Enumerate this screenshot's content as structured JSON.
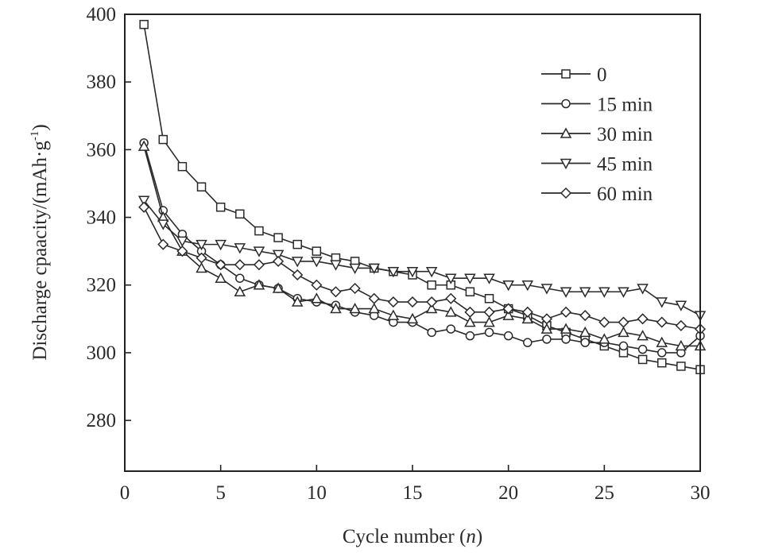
{
  "chart_data": {
    "type": "line",
    "xlabel": "Cycle number (n)",
    "xlabel_parts": [
      "Cycle number (",
      "n",
      ")"
    ],
    "ylabel": "Discharge cpaacity/(mAh·g⁻¹)",
    "ylabel_parts": [
      "Discharge cpaacity/(mAh·g",
      "-1",
      ")"
    ],
    "xlim": [
      0,
      30
    ],
    "ylim": [
      265,
      400
    ],
    "x_ticks": [
      0,
      5,
      10,
      15,
      20,
      25,
      30
    ],
    "y_ticks": [
      280,
      300,
      320,
      340,
      360,
      380,
      400
    ],
    "grid": false,
    "legend_position": "top-right",
    "x": [
      1,
      2,
      3,
      4,
      5,
      6,
      7,
      8,
      9,
      10,
      11,
      12,
      13,
      14,
      15,
      16,
      17,
      18,
      19,
      20,
      21,
      22,
      23,
      24,
      25,
      26,
      27,
      28,
      29,
      30
    ],
    "series": [
      {
        "name": "0",
        "marker": "square",
        "values": [
          397,
          363,
          355,
          349,
          343,
          341,
          336,
          334,
          332,
          330,
          328,
          327,
          325,
          324,
          323,
          320,
          320,
          318,
          316,
          313,
          311,
          308,
          306,
          304,
          302,
          300,
          298,
          297,
          296,
          295
        ]
      },
      {
        "name": "15 min",
        "marker": "circle",
        "values": [
          362,
          342,
          335,
          330,
          326,
          322,
          320,
          319,
          316,
          315,
          314,
          312,
          311,
          309,
          309,
          306,
          307,
          305,
          306,
          305,
          303,
          304,
          304,
          303,
          303,
          302,
          301,
          300,
          300,
          305
        ]
      },
      {
        "name": "30 min",
        "marker": "triangle-up",
        "values": [
          361,
          340,
          330,
          325,
          322,
          318,
          320,
          319,
          315,
          316,
          313,
          313,
          313,
          311,
          310,
          313,
          312,
          309,
          309,
          311,
          310,
          307,
          307,
          306,
          304,
          306,
          305,
          303,
          302,
          302
        ]
      },
      {
        "name": "45 min",
        "marker": "triangle-down",
        "values": [
          345,
          338,
          333,
          332,
          332,
          331,
          330,
          329,
          327,
          327,
          326,
          325,
          325,
          324,
          324,
          324,
          322,
          322,
          322,
          320,
          320,
          319,
          318,
          318,
          318,
          318,
          319,
          315,
          314,
          311
        ]
      },
      {
        "name": "60 min",
        "marker": "diamond",
        "values": [
          343,
          332,
          330,
          328,
          326,
          326,
          326,
          327,
          323,
          320,
          318,
          319,
          316,
          315,
          315,
          315,
          316,
          312,
          312,
          313,
          312,
          310,
          312,
          311,
          309,
          309,
          310,
          309,
          308,
          307
        ]
      }
    ]
  }
}
